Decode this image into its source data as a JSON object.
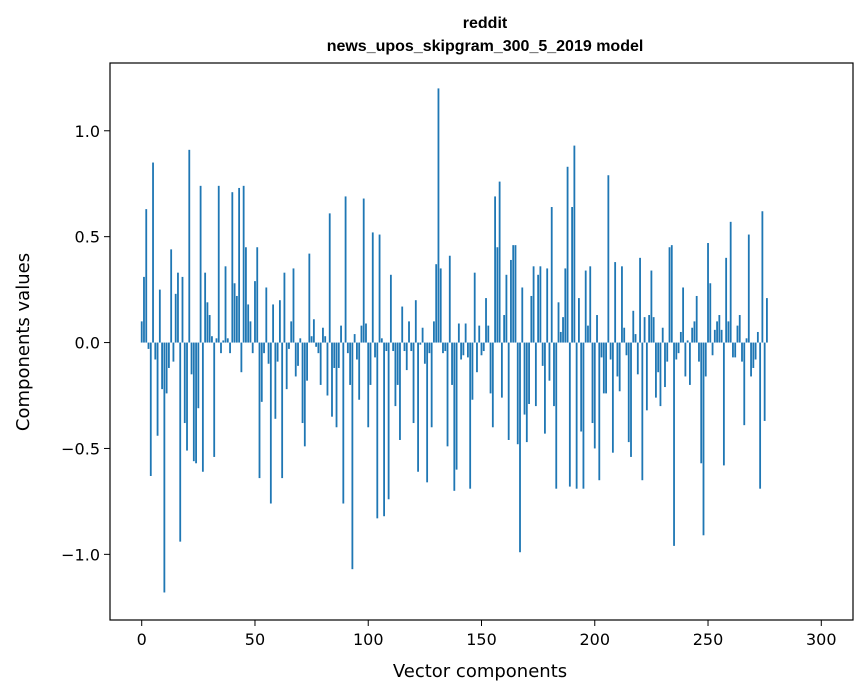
{
  "chart_data": {
    "type": "bar",
    "title_lines": [
      "reddit",
      "news_upos_skipgram_300_5_2019 model"
    ],
    "xlabel": "Vector components",
    "ylabel": "Components values",
    "xlim": [
      -14,
      314
    ],
    "ylim": [
      -1.31,
      1.32
    ],
    "xticks": [
      0,
      50,
      100,
      150,
      200,
      250,
      300
    ],
    "yticks": [
      -1.0,
      -0.5,
      0.0,
      0.5,
      1.0
    ],
    "ytick_labels": [
      "−1.0",
      "−0.5",
      "0.0",
      "0.5",
      "1.0"
    ],
    "bar_color": "#1f77b4",
    "grid": false,
    "values": [
      0.1,
      0.31,
      0.63,
      -0.03,
      -0.63,
      0.85,
      -0.08,
      -0.44,
      0.25,
      -0.22,
      -1.18,
      -0.24,
      -0.12,
      0.44,
      -0.09,
      0.23,
      0.33,
      -0.94,
      0.31,
      -0.38,
      -0.51,
      0.91,
      -0.15,
      -0.56,
      -0.57,
      -0.31,
      0.74,
      -0.61,
      0.33,
      0.19,
      0.13,
      0.03,
      -0.54,
      0.02,
      0.74,
      -0.05,
      0.01,
      0.36,
      0.02,
      -0.05,
      0.71,
      0.28,
      0.22,
      0.73,
      -0.14,
      0.74,
      0.45,
      0.18,
      0.1,
      -0.05,
      0.29,
      0.45,
      -0.64,
      -0.28,
      -0.05,
      0.26,
      -0.1,
      -0.76,
      0.18,
      -0.36,
      -0.09,
      0.2,
      -0.64,
      0.33,
      -0.22,
      -0.03,
      0.1,
      0.35,
      -0.16,
      -0.11,
      0.02,
      -0.38,
      -0.49,
      -0.18,
      0.42,
      0.03,
      0.11,
      -0.02,
      -0.05,
      -0.2,
      0.07,
      0.03,
      -0.25,
      0.61,
      -0.35,
      -0.12,
      -0.4,
      -0.12,
      0.08,
      -0.76,
      0.69,
      -0.05,
      -0.2,
      -1.07,
      0.04,
      -0.08,
      -0.27,
      0.08,
      0.68,
      0.09,
      -0.4,
      -0.2,
      0.52,
      -0.07,
      -0.83,
      0.51,
      0.02,
      -0.82,
      -0.04,
      -0.74,
      0.32,
      -0.04,
      -0.3,
      -0.2,
      -0.46,
      0.17,
      -0.04,
      -0.13,
      0.1,
      -0.04,
      -0.38,
      0.2,
      -0.61,
      -0.01,
      0.07,
      -0.1,
      -0.66,
      -0.05,
      -0.4,
      0.1,
      0.37,
      1.2,
      0.35,
      -0.05,
      -0.04,
      -0.49,
      0.41,
      -0.2,
      -0.7,
      -0.6,
      0.09,
      -0.08,
      -0.06,
      0.09,
      -0.07,
      -0.69,
      -0.27,
      0.33,
      -0.14,
      0.08,
      -0.06,
      -0.04,
      0.21,
      0.08,
      -0.24,
      -0.4,
      0.69,
      0.45,
      0.76,
      -0.26,
      0.13,
      0.32,
      -0.46,
      0.39,
      0.46,
      0.46,
      -0.48,
      -0.99,
      0.26,
      -0.34,
      -0.47,
      -0.29,
      0.22,
      0.36,
      -0.3,
      0.32,
      0.36,
      -0.11,
      -0.43,
      0.35,
      -0.18,
      0.64,
      -0.3,
      -0.69,
      0.19,
      0.05,
      0.12,
      0.35,
      0.83,
      -0.68,
      0.64,
      0.93,
      -0.69,
      0.21,
      -0.42,
      -0.69,
      0.34,
      0.08,
      0.36,
      -0.38,
      -0.5,
      0.13,
      -0.65,
      -0.07,
      -0.24,
      -0.24,
      0.79,
      -0.08,
      -0.52,
      0.38,
      -0.16,
      -0.23,
      0.36,
      0.07,
      -0.06,
      -0.47,
      -0.54,
      0.15,
      0.04,
      -0.15,
      0.4,
      -0.65,
      0.12,
      -0.32,
      0.13,
      0.34,
      0.12,
      -0.26,
      -0.14,
      -0.3,
      0.07,
      -0.21,
      -0.09,
      0.45,
      0.46,
      -0.96,
      -0.08,
      -0.05,
      0.05,
      0.26,
      -0.16,
      0.01,
      -0.2,
      0.07,
      0.1,
      0.22,
      -0.09,
      -0.57,
      -0.91,
      -0.16,
      0.47,
      0.28,
      -0.06,
      0.06,
      0.1,
      0.13,
      0.06,
      -0.58,
      0.4,
      0.1,
      0.57,
      -0.07,
      -0.07,
      0.08,
      0.13,
      -0.09,
      -0.39,
      0.02,
      0.51,
      -0.16,
      -0.12,
      -0.08,
      0.05,
      -0.69,
      0.62,
      -0.37,
      0.21
    ]
  }
}
